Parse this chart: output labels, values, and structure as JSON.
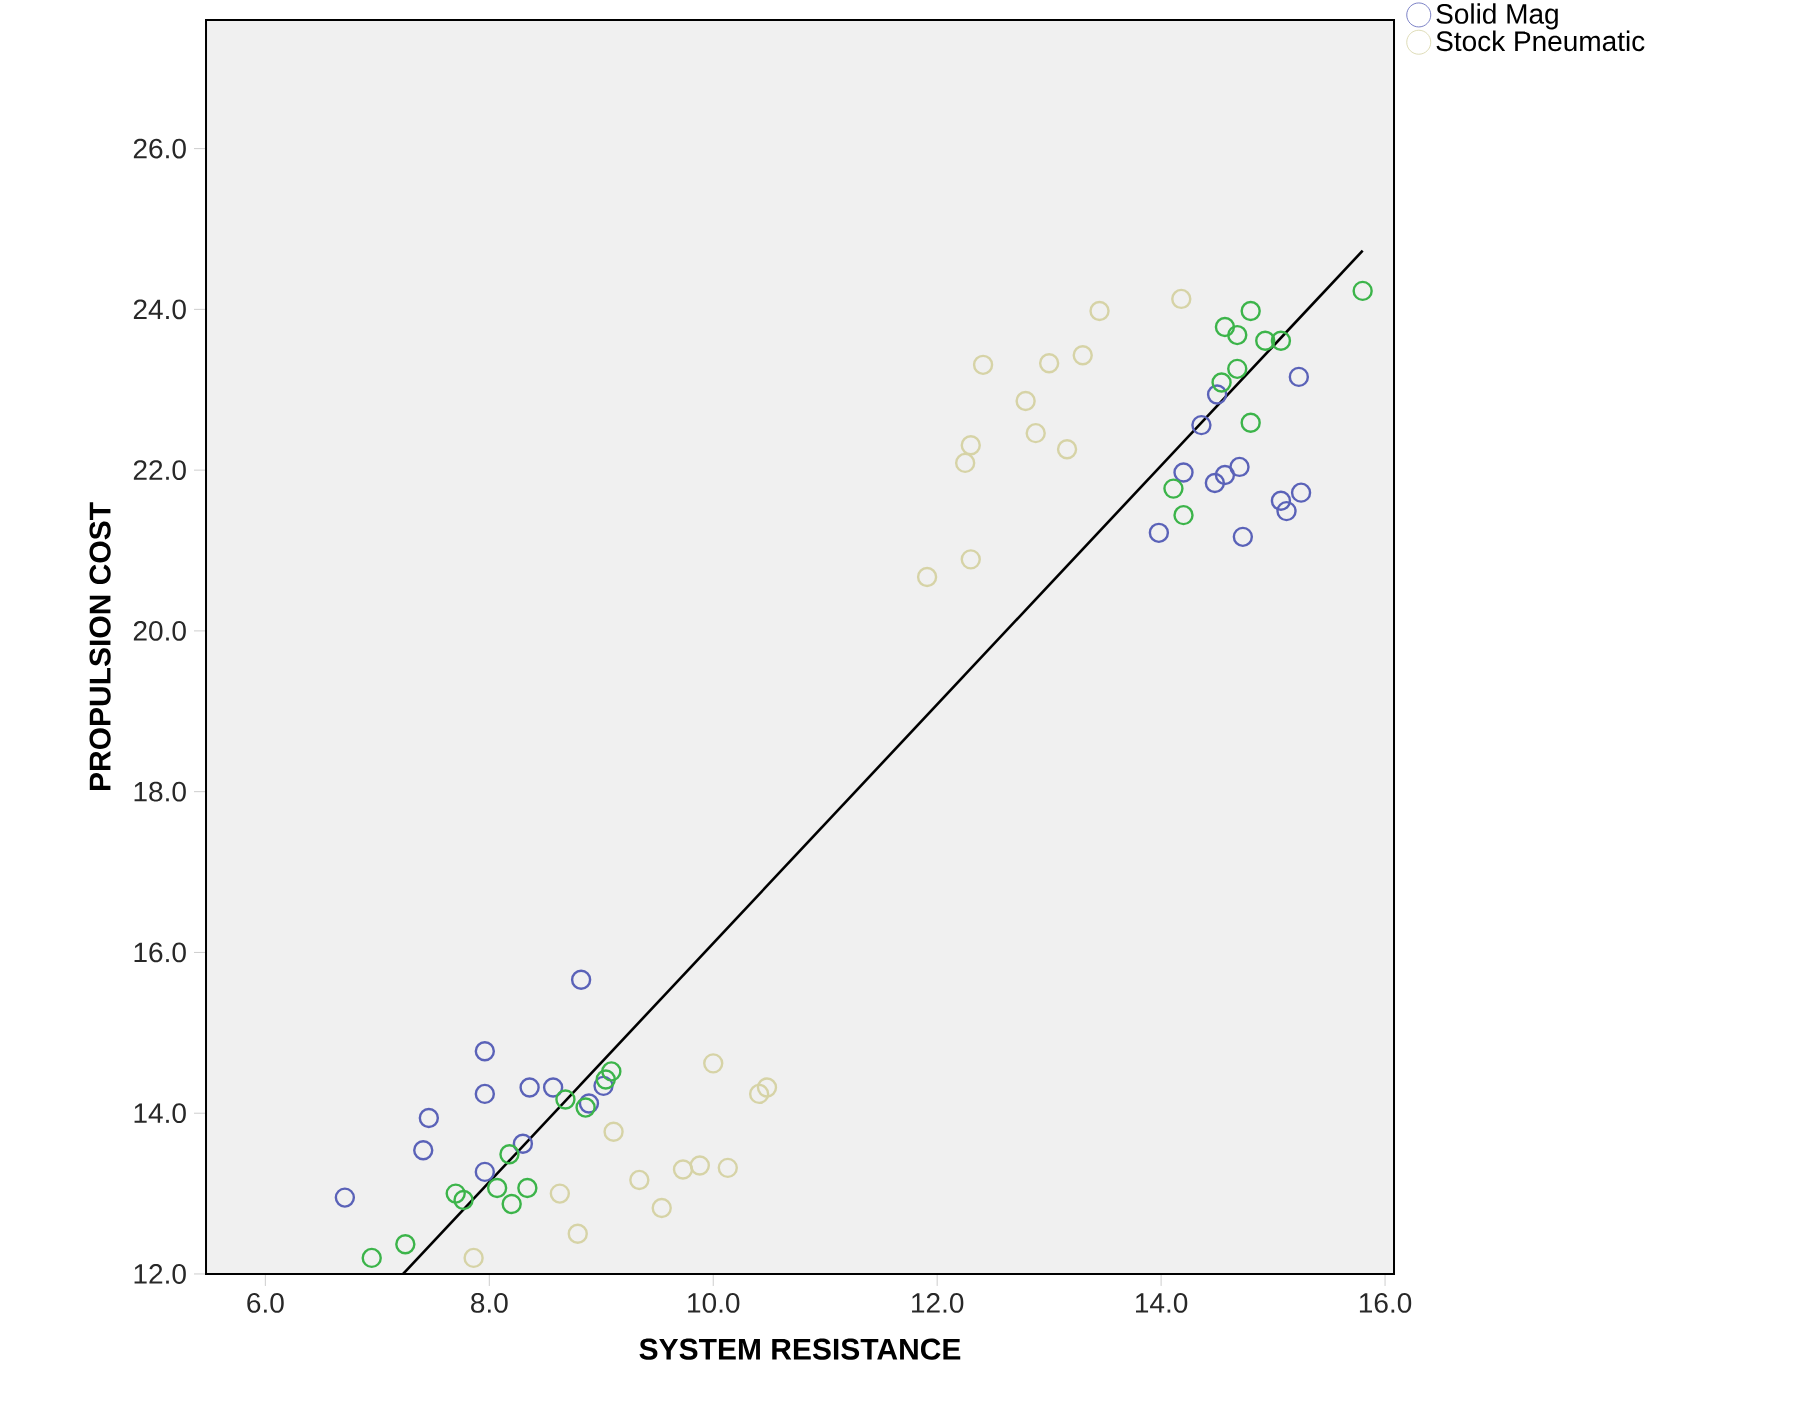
{
  "chart_data": {
    "type": "scatter",
    "xlabel": "SYSTEM RESISTANCE",
    "ylabel": "PROPULSION COST",
    "xlim": [
      5.47,
      16.08
    ],
    "ylim": [
      12,
      27.6
    ],
    "xticks": [
      {
        "value": 6,
        "label": "6.0"
      },
      {
        "value": 8,
        "label": "8.0"
      },
      {
        "value": 10,
        "label": "10.0"
      },
      {
        "value": 12,
        "label": "12.0"
      },
      {
        "value": 14,
        "label": "14.0"
      },
      {
        "value": 16,
        "label": "16.0"
      }
    ],
    "yticks": [
      {
        "value": 12,
        "label": "12.0"
      },
      {
        "value": 14,
        "label": "14.0"
      },
      {
        "value": 16,
        "label": "16.0"
      },
      {
        "value": 18,
        "label": "18.0"
      },
      {
        "value": 20,
        "label": "20.0"
      },
      {
        "value": 22,
        "label": "22.0"
      },
      {
        "value": 24,
        "label": "24.0"
      },
      {
        "value": 26,
        "label": "26.0"
      }
    ],
    "marker": "circle",
    "legend": "top right",
    "grid": false,
    "series": [
      {
        "name": "Solid Mag",
        "color": "#5a62b8",
        "x": [
          6.71,
          7.41,
          7.46,
          7.96,
          7.96,
          7.96,
          8.3,
          8.36,
          8.57,
          8.82,
          9.02,
          8.89,
          15.23,
          14.5,
          14.36,
          14.2,
          14.48,
          14.57,
          14.7,
          13.98,
          14.73,
          15.07,
          15.12,
          15.25
        ],
        "values": [
          12.95,
          13.54,
          13.94,
          14.77,
          14.24,
          13.27,
          13.62,
          14.32,
          14.32,
          15.66,
          14.34,
          14.12,
          23.16,
          22.94,
          22.56,
          21.97,
          21.84,
          21.94,
          22.04,
          21.22,
          21.17,
          21.62,
          21.49,
          21.72
        ]
      },
      {
        "color": "#3cb44a",
        "x": [
          6.95,
          7.25,
          7.7,
          7.77,
          8.07,
          8.2,
          8.34,
          8.18,
          8.68,
          8.86,
          9.09,
          9.04,
          14.8,
          14.57,
          14.68,
          14.93,
          15.07,
          15.8,
          14.68,
          14.54,
          14.8,
          14.11,
          14.2
        ],
        "values": [
          12.2,
          12.37,
          13.0,
          12.92,
          13.07,
          12.87,
          13.07,
          13.49,
          14.17,
          14.07,
          14.52,
          14.42,
          23.98,
          23.78,
          23.68,
          23.61,
          23.61,
          24.23,
          23.26,
          23.09,
          22.59,
          21.77,
          21.44
        ]
      },
      {
        "name": "Stock Pneumatic",
        "color": "#d6d3a6",
        "x": [
          7.86,
          8.63,
          8.79,
          9.11,
          9.34,
          9.54,
          9.73,
          9.88,
          10.13,
          10.0,
          10.41,
          10.48,
          11.91,
          12.3,
          12.25,
          12.3,
          12.41,
          12.79,
          12.88,
          13.16,
          13.0,
          13.3,
          13.45,
          14.18
        ],
        "values": [
          12.2,
          13.0,
          12.5,
          13.77,
          13.17,
          12.82,
          13.3,
          13.35,
          13.32,
          14.62,
          14.24,
          14.32,
          20.67,
          20.89,
          22.09,
          22.31,
          23.31,
          22.86,
          22.46,
          22.26,
          23.33,
          23.43,
          23.98,
          24.13
        ]
      },
      {
        "type": "line",
        "color": "#000000",
        "marker": "none",
        "line_style": "solid",
        "x": [
          7.23,
          15.8
        ],
        "values": [
          12.0,
          24.73
        ]
      }
    ]
  }
}
